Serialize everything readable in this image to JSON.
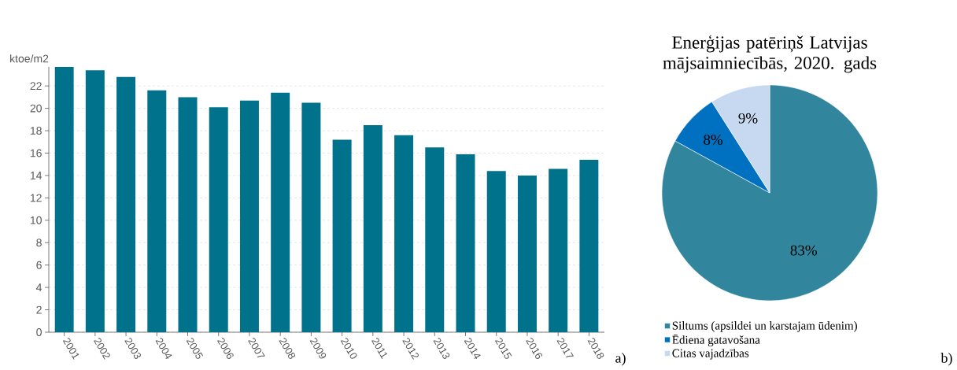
{
  "chart_data": [
    {
      "type": "bar",
      "ylabel": "ktoe/m2",
      "categories": [
        "2001",
        "2002",
        "2003",
        "2004",
        "2005",
        "2006",
        "2007",
        "2008",
        "2009",
        "2010",
        "2011",
        "2012",
        "2013",
        "2014",
        "2015",
        "2016",
        "2017",
        "2018"
      ],
      "values": [
        23.7,
        23.4,
        22.8,
        21.6,
        21.0,
        20.1,
        20.7,
        21.4,
        20.5,
        17.2,
        18.5,
        17.6,
        16.5,
        15.9,
        14.4,
        14.0,
        14.6,
        15.4
      ],
      "color": "#00728c",
      "ylim": [
        0,
        23.7
      ],
      "yticks": [
        0,
        2,
        4,
        6,
        8,
        10,
        12,
        14,
        16,
        18,
        20,
        22
      ],
      "grid": "y",
      "annotations": [
        "a)"
      ]
    },
    {
      "type": "pie",
      "title": "Enerģijas patēriņš Latvijas mājsaimniecībās, 2020. gads",
      "categories": [
        "Siltums (apsildei un karstajam ūdenim)",
        "Ēdiena gatavošana",
        "Citas vajadzības"
      ],
      "values": [
        83,
        8,
        9
      ],
      "colors": [
        "#31859c",
        "#0070c0",
        "#c6d9f1"
      ],
      "value_labels": [
        "83%",
        "8%",
        "9%"
      ],
      "legend": "bottom",
      "annotations": [
        "b)"
      ]
    }
  ]
}
